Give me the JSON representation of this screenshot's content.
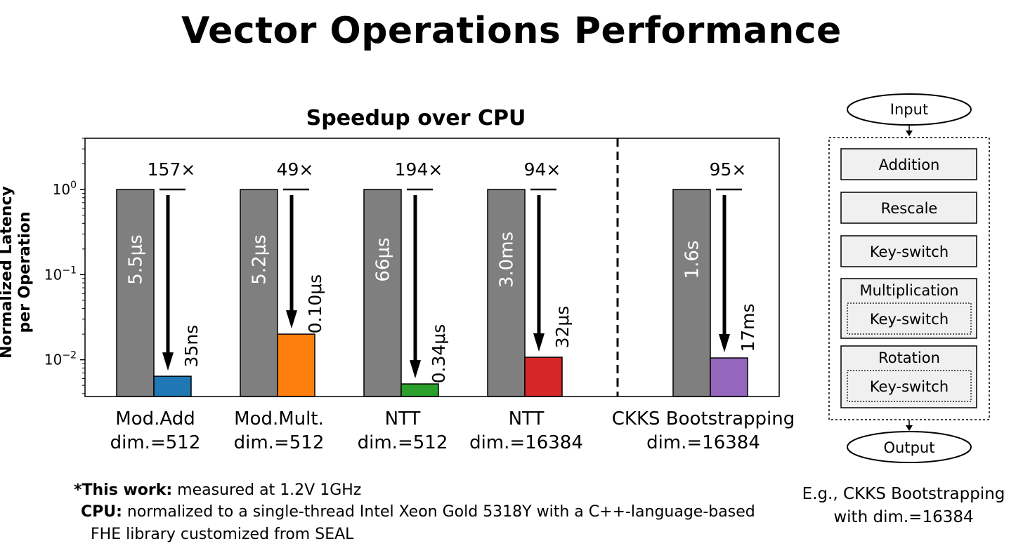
{
  "page_title": "Vector Operations Performance",
  "chart_data": {
    "type": "bar",
    "title": "Speedup over CPU",
    "ylabel_lines": [
      "Normalized Latency",
      "per Operation"
    ],
    "yscale": "log",
    "ylim": [
      0.0037,
      4.0
    ],
    "yticks": [
      {
        "value": 1,
        "base": "10",
        "exp": "0"
      },
      {
        "value": 0.1,
        "base": "10",
        "exp": "−1"
      },
      {
        "value": 0.01,
        "base": "10",
        "exp": "−2"
      }
    ],
    "grid": false,
    "categories": [
      {
        "lines": [
          "Mod.Add",
          "dim.=512"
        ]
      },
      {
        "lines": [
          "Mod.Mult.",
          "dim.=512"
        ]
      },
      {
        "lines": [
          "NTT",
          "dim.=512"
        ]
      },
      {
        "lines": [
          "NTT",
          "dim.=16384"
        ]
      },
      {
        "lines": [
          "CKKS Bootstrapping",
          "dim.=16384"
        ]
      }
    ],
    "series": [
      {
        "values": [
          1.0,
          1.0,
          1.0,
          1.0,
          1.0
        ],
        "labels": [
          "5.5μs",
          "5.2μs",
          "66μs",
          "3.0ms",
          "1.6s"
        ],
        "colors": [
          "#7f7f7f",
          "#7f7f7f",
          "#7f7f7f",
          "#7f7f7f",
          "#7f7f7f"
        ]
      },
      {
        "values": [
          0.0064,
          0.02,
          0.0052,
          0.0107,
          0.0105
        ],
        "labels": [
          "35ns",
          "0.10μs",
          "0.34μs",
          "32μs",
          "17ms"
        ],
        "colors": [
          "#1f77b4",
          "#ff7f0e",
          "#2ca02c",
          "#d62728",
          "#9467bd"
        ]
      }
    ],
    "speedups": [
      "157×",
      "49×",
      "194×",
      "94×",
      "95×"
    ],
    "separator": "dashed line between NTT dim.=16384 and CKKS Bootstrapping"
  },
  "footnote": {
    "line1_bold": "*This work:",
    "line1_text": " measured at 1.2V 1GHz",
    "line2_bold": "CPU:",
    "line2_text": " normalized to a single-thread Intel Xeon Gold 5318Y with a C++-language-based",
    "line3_text": "FHE library customized from SEAL"
  },
  "flow": {
    "input": "Input",
    "output": "Output",
    "steps": [
      {
        "label": "Addition",
        "inner": ""
      },
      {
        "label": "Rescale",
        "inner": ""
      },
      {
        "label": "Key-switch",
        "inner": ""
      },
      {
        "label": "Multiplication",
        "inner": "Key-switch"
      },
      {
        "label": "Rotation",
        "inner": "Key-switch"
      }
    ],
    "caption_line1": "E.g., CKKS Bootstrapping",
    "caption_line2": "with dim.=16384"
  },
  "colors": {
    "cpu_bar": "#7f7f7f",
    "box_fill": "#f0f0f0"
  }
}
